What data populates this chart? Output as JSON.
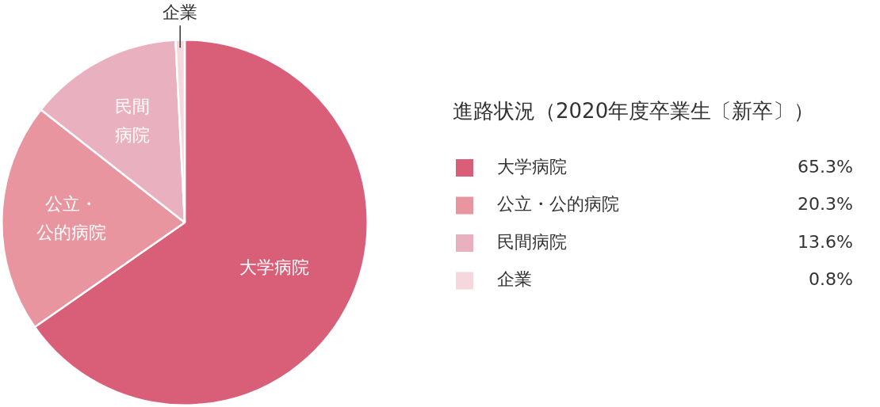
{
  "chart_data": {
    "type": "pie",
    "title": "進路状況（2020年度卒業生〔新卒〕）",
    "categories": [
      "大学病院",
      "公立・公的病院",
      "民間病院",
      "企業"
    ],
    "values": [
      65.3,
      20.3,
      13.6,
      0.8
    ],
    "value_labels": [
      "65.3%",
      "20.3%",
      "13.6%",
      "0.8%"
    ],
    "colors": [
      "#d95e77",
      "#e8959f",
      "#e9b0bf",
      "#f5d7de"
    ],
    "annotations": [
      "大学病院",
      "公立・公的病院",
      "民間病院",
      "企業"
    ],
    "legend": "right"
  }
}
